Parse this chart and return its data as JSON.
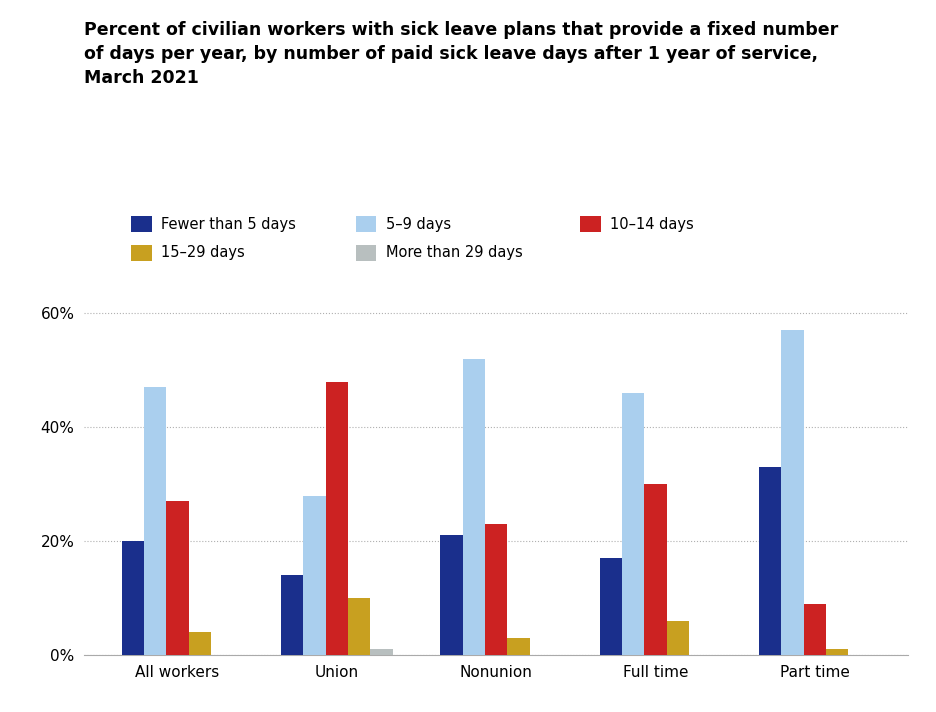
{
  "title_line1": "Percent of civilian workers with sick leave plans that provide a fixed number",
  "title_line2": "of days per year, by number of paid sick leave days after 1 year of service,",
  "title_line3": "March 2021",
  "categories": [
    "All workers",
    "Union",
    "Nonunion",
    "Full time",
    "Part time"
  ],
  "series": {
    "Fewer than 5 days": [
      20,
      14,
      21,
      17,
      33
    ],
    "5–9 days": [
      47,
      28,
      52,
      46,
      57
    ],
    "10–14 days": [
      27,
      48,
      23,
      30,
      9
    ],
    "15–29 days": [
      4,
      10,
      3,
      6,
      1
    ],
    "More than 29 days": [
      0,
      1,
      0,
      0,
      0
    ]
  },
  "colors": {
    "Fewer than 5 days": "#1a2f8c",
    "5–9 days": "#aacfee",
    "10–14 days": "#cc2222",
    "15–29 days": "#c8a020",
    "More than 29 days": "#b8bfbf"
  },
  "ylim": [
    0,
    65
  ],
  "yticks": [
    0,
    20,
    40,
    60
  ],
  "ytick_labels": [
    "0%",
    "20%",
    "40%",
    "60%"
  ],
  "background_color": "#ffffff",
  "title_fontsize": 12.5,
  "legend_fontsize": 10.5,
  "axis_fontsize": 11
}
